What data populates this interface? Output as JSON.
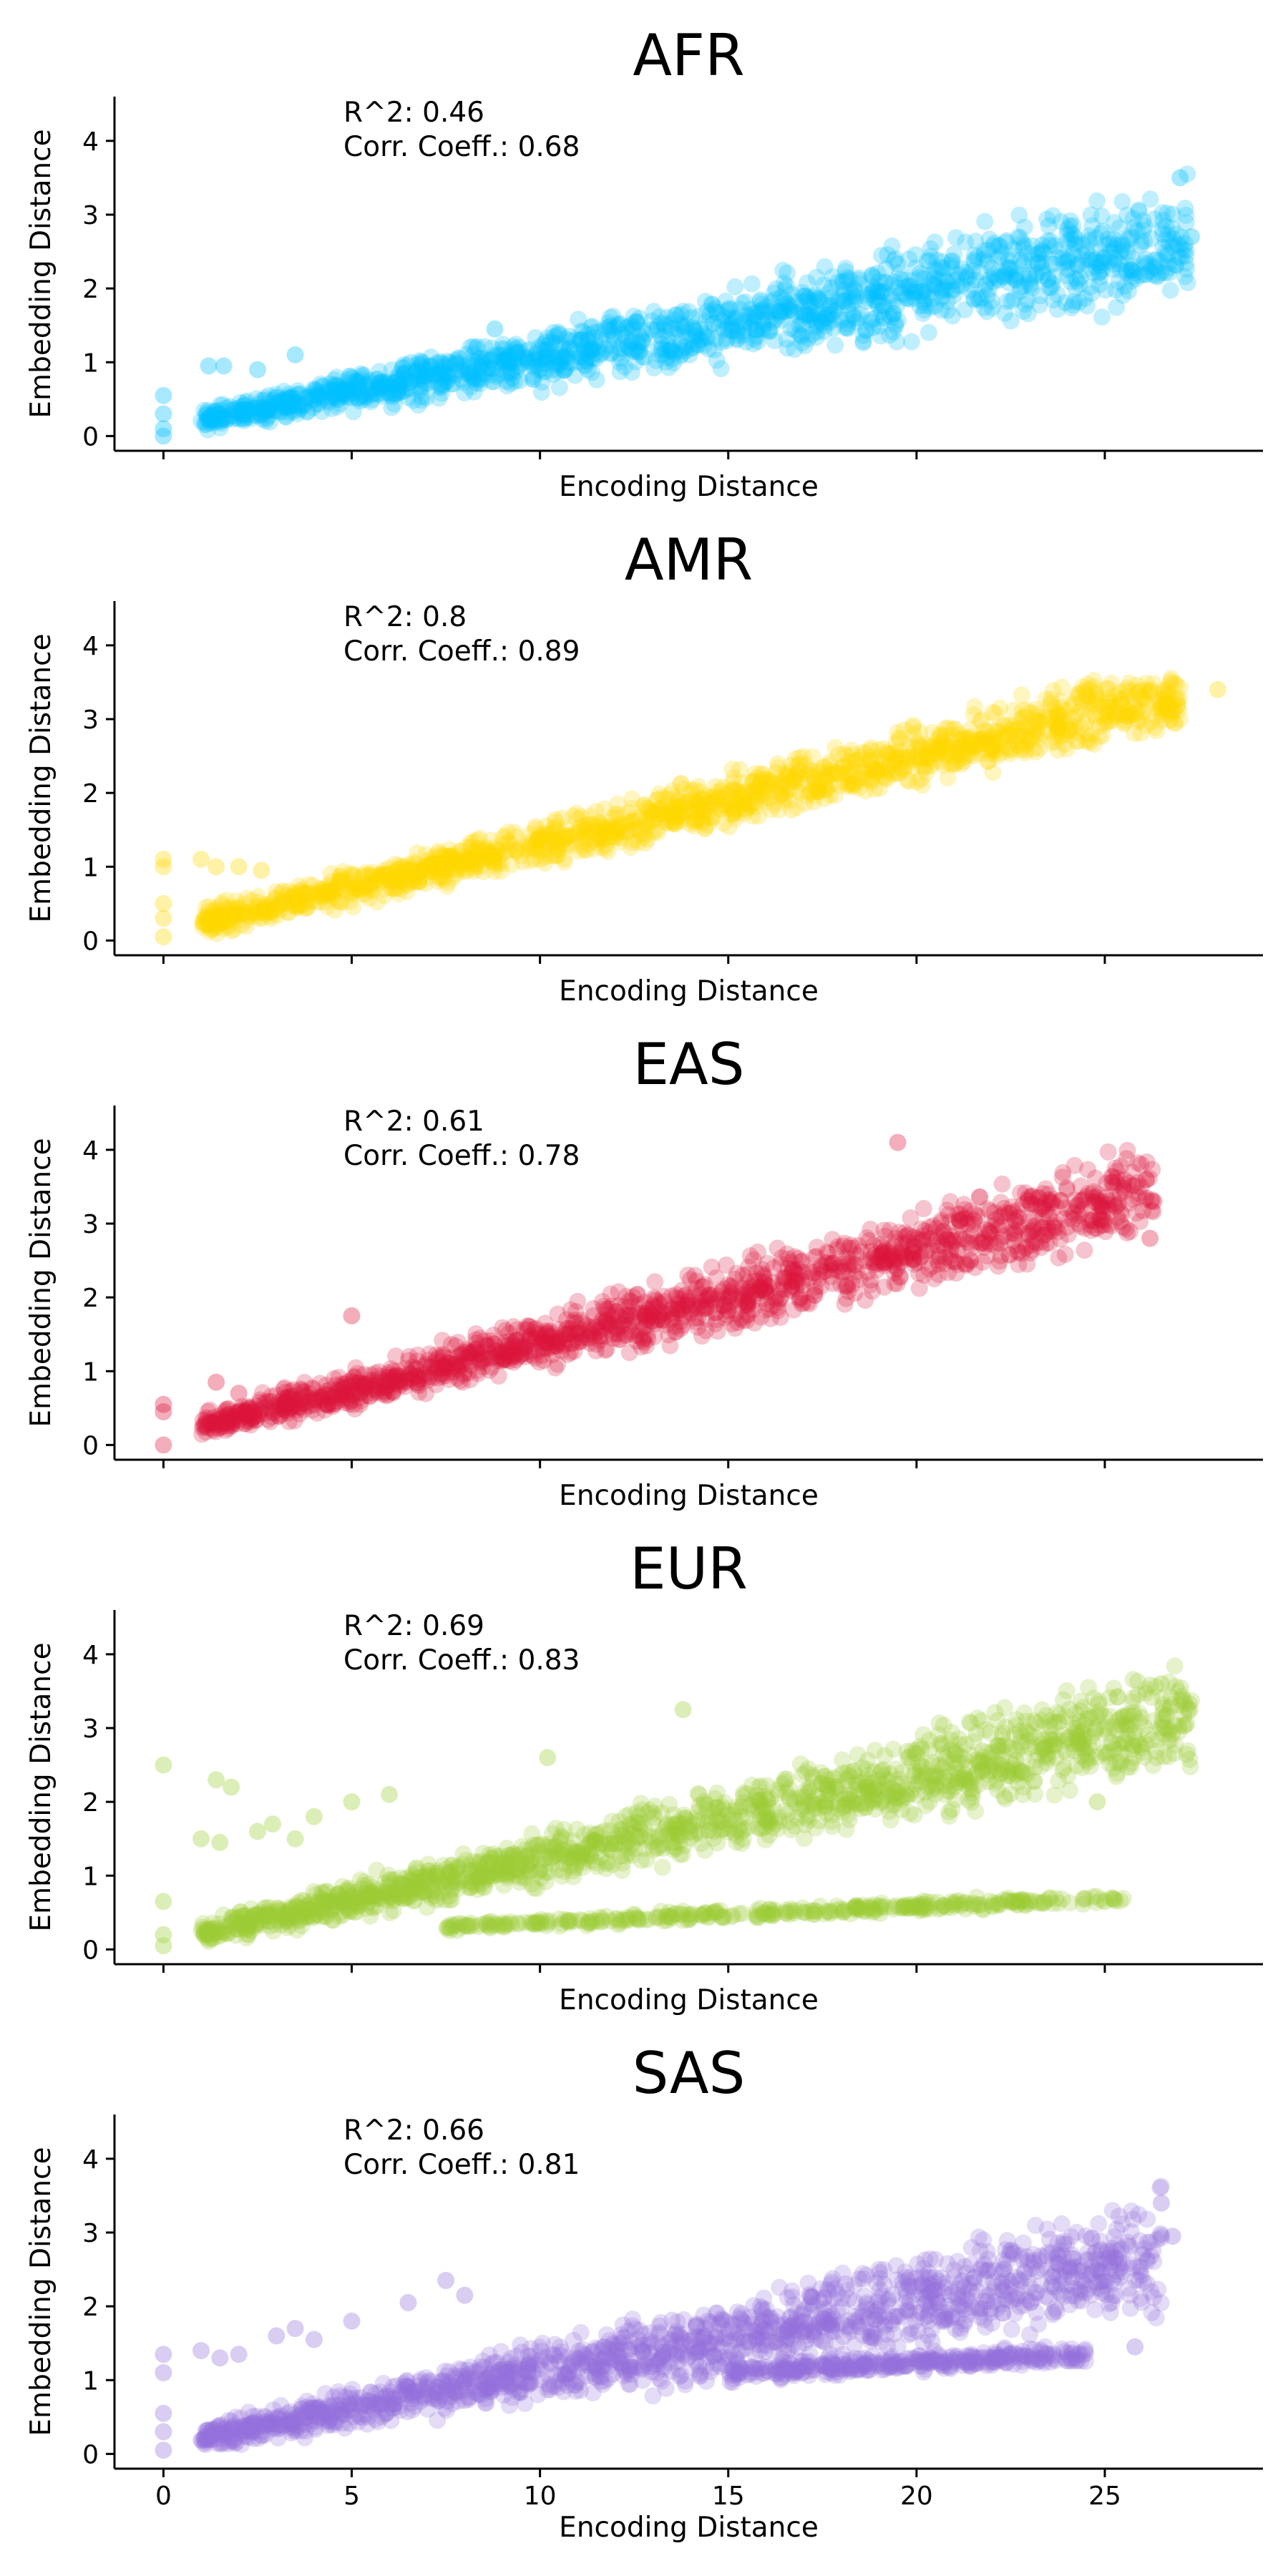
{
  "chart_data": [
    {
      "type": "scatter",
      "title": "AFR",
      "xlabel": "Encoding Distance",
      "ylabel": "Embedding Distance",
      "color": "#00BFFF",
      "annotation": [
        "R^2: 0.46",
        "Corr. Coeff.: 0.68"
      ],
      "xlim": [
        -1.3,
        29.2
      ],
      "ylim": [
        -0.2,
        4.6
      ],
      "xticks": [
        0,
        5,
        10,
        15,
        20,
        25
      ],
      "yticks": [
        0,
        1,
        2,
        3,
        4
      ],
      "show_xtick_labels": false,
      "band": {
        "x": [
          1,
          27.2
        ],
        "lower": [
          0.0,
          1.6
        ],
        "upper": [
          0.45,
          3.7
        ]
      },
      "outliers": [
        [
          0,
          0.55
        ],
        [
          0,
          0.3
        ],
        [
          0,
          0.1
        ],
        [
          0,
          0.0
        ],
        [
          1.2,
          0.95
        ],
        [
          1.6,
          0.95
        ],
        [
          2.5,
          0.9
        ],
        [
          3.5,
          1.1
        ],
        [
          8.8,
          1.45
        ],
        [
          27.0,
          3.5
        ],
        [
          27.3,
          2.7
        ]
      ]
    },
    {
      "type": "scatter",
      "title": "AMR",
      "xlabel": "Encoding Distance",
      "ylabel": "Embedding Distance",
      "color": "#FFD700",
      "annotation": [
        "R^2: 0.8",
        "Corr. Coeff.: 0.89"
      ],
      "xlim": [
        -1.3,
        29.2
      ],
      "ylim": [
        -0.2,
        4.6
      ],
      "xticks": [
        0,
        5,
        10,
        15,
        20,
        25
      ],
      "yticks": [
        0,
        1,
        2,
        3,
        4
      ],
      "show_xtick_labels": false,
      "band": {
        "x": [
          1,
          27.0
        ],
        "lower": [
          0.0,
          2.7
        ],
        "upper": [
          0.5,
          3.95
        ]
      },
      "outliers": [
        [
          0,
          1.1
        ],
        [
          0,
          1.0
        ],
        [
          0,
          0.5
        ],
        [
          0,
          0.3
        ],
        [
          0,
          0.05
        ],
        [
          1.0,
          1.1
        ],
        [
          1.4,
          1.0
        ],
        [
          2.0,
          1.0
        ],
        [
          2.6,
          0.95
        ],
        [
          28.0,
          3.4
        ],
        [
          26.8,
          3.1
        ]
      ]
    },
    {
      "type": "scatter",
      "title": "EAS",
      "xlabel": "Encoding Distance",
      "ylabel": "Embedding Distance",
      "color": "#DC143C",
      "annotation": [
        "R^2: 0.61",
        "Corr. Coeff.: 0.78"
      ],
      "xlim": [
        -1.3,
        29.2
      ],
      "ylim": [
        -0.2,
        4.6
      ],
      "xticks": [
        0,
        5,
        10,
        15,
        20,
        25
      ],
      "yticks": [
        0,
        1,
        2,
        3,
        4
      ],
      "show_xtick_labels": false,
      "band": {
        "x": [
          1,
          26.3
        ],
        "lower": [
          0.0,
          2.6
        ],
        "upper": [
          0.5,
          4.3
        ]
      },
      "outliers": [
        [
          0,
          0.55
        ],
        [
          0,
          0.45
        ],
        [
          0,
          0.0
        ],
        [
          1.4,
          0.85
        ],
        [
          2.0,
          0.7
        ],
        [
          5.0,
          1.75
        ],
        [
          19.5,
          4.1
        ],
        [
          26.2,
          2.8
        ],
        [
          26.3,
          3.3
        ]
      ]
    },
    {
      "type": "scatter",
      "title": "EUR",
      "xlabel": "Encoding Distance",
      "ylabel": "Embedding Distance",
      "color": "#9ACD32",
      "annotation": [
        "R^2: 0.69",
        "Corr. Coeff.: 0.83"
      ],
      "xlim": [
        -1.3,
        29.2
      ],
      "ylim": [
        -0.2,
        4.6
      ],
      "xticks": [
        0,
        5,
        10,
        15,
        20,
        25
      ],
      "yticks": [
        0,
        1,
        2,
        3,
        4
      ],
      "show_xtick_labels": false,
      "band": {
        "x": [
          1,
          27.3
        ],
        "lower": [
          0.0,
          2.2
        ],
        "upper": [
          0.45,
          4.1
        ]
      },
      "band2": {
        "x": [
          7.5,
          25.5
        ],
        "lower": [
          0.22,
          0.6
        ],
        "upper": [
          0.4,
          0.8
        ]
      },
      "outliers": [
        [
          0,
          2.5
        ],
        [
          0,
          0.65
        ],
        [
          0,
          0.2
        ],
        [
          0,
          0.05
        ],
        [
          1.0,
          1.5
        ],
        [
          1.5,
          1.45
        ],
        [
          1.4,
          2.3
        ],
        [
          1.8,
          2.2
        ],
        [
          2.5,
          1.6
        ],
        [
          2.9,
          1.7
        ],
        [
          3.5,
          1.5
        ],
        [
          4.0,
          1.8
        ],
        [
          5.0,
          2.0
        ],
        [
          6.0,
          2.1
        ],
        [
          10.2,
          2.6
        ],
        [
          13.8,
          3.25
        ],
        [
          25.0,
          0.65
        ],
        [
          24.8,
          2.0
        ],
        [
          26.5,
          3.6
        ]
      ]
    },
    {
      "type": "scatter",
      "title": "SAS",
      "xlabel": "Encoding Distance",
      "ylabel": "Embedding Distance",
      "color": "#9370DB",
      "annotation": [
        "R^2: 0.66",
        "Corr. Coeff.: 0.81"
      ],
      "xlim": [
        -1.3,
        29.2
      ],
      "ylim": [
        -0.2,
        4.6
      ],
      "xticks": [
        0,
        5,
        10,
        15,
        20,
        25
      ],
      "yticks": [
        0,
        1,
        2,
        3,
        4
      ],
      "xticklabels": [
        "0",
        "5",
        "10",
        "15",
        "20",
        "25"
      ],
      "show_xtick_labels": true,
      "band": {
        "x": [
          1,
          26.5
        ],
        "lower": [
          0.0,
          1.6
        ],
        "upper": [
          0.45,
          3.8
        ]
      },
      "band2": {
        "x": [
          15,
          24.5
        ],
        "lower": [
          0.95,
          1.2
        ],
        "upper": [
          1.25,
          1.5
        ]
      },
      "outliers": [
        [
          0,
          1.35
        ],
        [
          0,
          1.1
        ],
        [
          0,
          0.55
        ],
        [
          0,
          0.3
        ],
        [
          0,
          0.05
        ],
        [
          1.0,
          1.4
        ],
        [
          1.5,
          1.3
        ],
        [
          2.0,
          1.35
        ],
        [
          3.0,
          1.6
        ],
        [
          3.5,
          1.7
        ],
        [
          4.0,
          1.55
        ],
        [
          5.0,
          1.8
        ],
        [
          6.5,
          2.05
        ],
        [
          7.5,
          2.35
        ],
        [
          8.0,
          2.15
        ],
        [
          25.8,
          1.45
        ],
        [
          26.0,
          2.7
        ],
        [
          26.8,
          2.95
        ],
        [
          26.5,
          3.4
        ]
      ]
    }
  ]
}
